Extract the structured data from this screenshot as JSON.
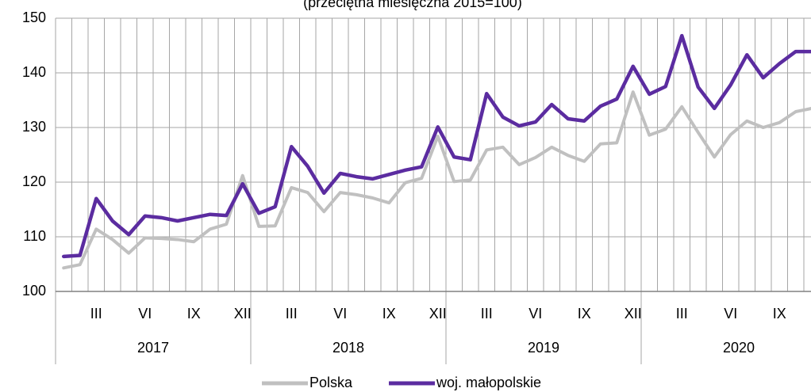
{
  "chart_data": {
    "type": "line",
    "subtitle": "(przeciętna miesięczna 2015=100)",
    "categories": [
      null,
      null,
      "III",
      null,
      null,
      "VI",
      null,
      null,
      "IX",
      null,
      null,
      "XII",
      null,
      null,
      "III",
      null,
      null,
      "VI",
      null,
      null,
      "IX",
      null,
      null,
      "XII",
      null,
      null,
      "III",
      null,
      null,
      "VI",
      null,
      null,
      "IX",
      null,
      null,
      "XII",
      null,
      null,
      "III",
      null,
      null,
      "VI",
      null,
      null,
      "IX",
      null,
      null
    ],
    "year_labels": [
      "2017",
      "2018",
      "2019",
      "2020"
    ],
    "series": [
      {
        "name": "Polska",
        "color": "#c0c0c0",
        "values": [
          104.3,
          104.9,
          111.4,
          109.5,
          107.0,
          109.8,
          109.7,
          109.5,
          109.1,
          111.4,
          112.3,
          121.2,
          111.9,
          112.0,
          119.0,
          118.1,
          114.6,
          118.1,
          117.7,
          117.1,
          116.2,
          119.9,
          120.7,
          128.4,
          120.1,
          120.4,
          125.9,
          126.4,
          123.2,
          124.5,
          126.4,
          124.9,
          123.8,
          127.0,
          127.2,
          136.5,
          128.6,
          129.7,
          133.8,
          129.1,
          124.6,
          128.7,
          131.2,
          130.0,
          130.9,
          132.9,
          133.5
        ]
      },
      {
        "name": "woj. małopolskie",
        "color": "#5b2ca0",
        "values": [
          106.4,
          106.6,
          117.0,
          112.9,
          110.4,
          113.8,
          113.5,
          112.9,
          113.5,
          114.1,
          113.9,
          119.7,
          114.3,
          115.5,
          126.5,
          122.9,
          118.0,
          121.6,
          121.0,
          120.6,
          121.4,
          122.2,
          122.8,
          130.1,
          124.6,
          124.1,
          136.2,
          131.9,
          130.3,
          131.0,
          134.2,
          131.6,
          131.2,
          133.9,
          135.2,
          141.2,
          136.1,
          137.5,
          146.8,
          137.4,
          133.5,
          137.8,
          143.3,
          139.1,
          141.7,
          143.9,
          143.9
        ]
      }
    ],
    "ylim": [
      100,
      150
    ],
    "yticks": [
      100,
      110,
      120,
      130,
      140,
      150
    ],
    "grid": true,
    "legend": "bottom"
  }
}
